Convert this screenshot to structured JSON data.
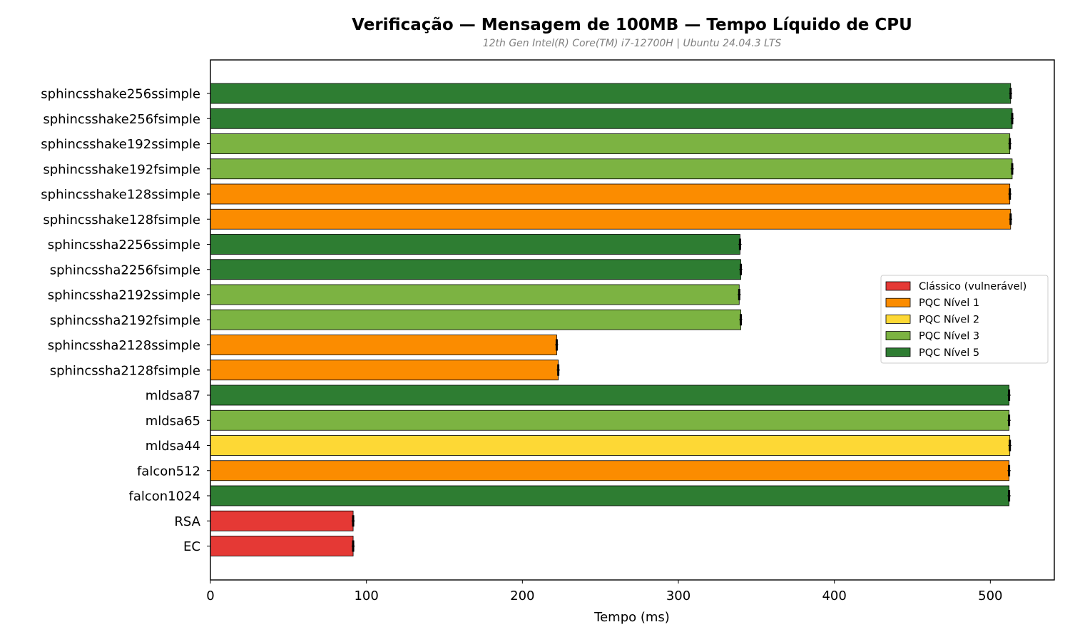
{
  "chart_data": {
    "type": "bar",
    "orientation": "horizontal",
    "title": "Verificação — Mensagem de 100MB — Tempo Líquido de CPU",
    "subtitle": "12th Gen Intel(R) Core(TM) i7-12700H | Ubuntu 24.04.3 LTS",
    "xlabel": "Tempo (ms)",
    "ylabel": "",
    "xlim": [
      0,
      541
    ],
    "xticks": [
      0,
      100,
      200,
      300,
      400,
      500
    ],
    "grid": false,
    "legend_position": "center-right",
    "legend": [
      {
        "key": "classico",
        "label": "Clássico (vulnerável)",
        "color": "#e53935"
      },
      {
        "key": "n1",
        "label": "PQC Nível 1",
        "color": "#fb8c00"
      },
      {
        "key": "n2",
        "label": "PQC Nível 2",
        "color": "#fdd835"
      },
      {
        "key": "n3",
        "label": "PQC Nível 3",
        "color": "#7cb342"
      },
      {
        "key": "n5",
        "label": "PQC Nível 5",
        "color": "#2e7d32"
      }
    ],
    "bars": [
      {
        "label": "sphincsshake256ssimple",
        "value": 513,
        "error": 1,
        "level": "n5"
      },
      {
        "label": "sphincsshake256fsimple",
        "value": 514,
        "error": 1,
        "level": "n5"
      },
      {
        "label": "sphincsshake192ssimple",
        "value": 512.5,
        "error": 1,
        "level": "n3"
      },
      {
        "label": "sphincsshake192fsimple",
        "value": 514,
        "error": 1,
        "level": "n3"
      },
      {
        "label": "sphincsshake128ssimple",
        "value": 512.5,
        "error": 1,
        "level": "n1"
      },
      {
        "label": "sphincsshake128fsimple",
        "value": 513,
        "error": 1,
        "level": "n1"
      },
      {
        "label": "sphincssha2256ssimple",
        "value": 339.5,
        "error": 1,
        "level": "n5"
      },
      {
        "label": "sphincssha2256fsimple",
        "value": 340,
        "error": 1,
        "level": "n5"
      },
      {
        "label": "sphincssha2192ssimple",
        "value": 339,
        "error": 1,
        "level": "n3"
      },
      {
        "label": "sphincssha2192fsimple",
        "value": 340,
        "error": 1,
        "level": "n3"
      },
      {
        "label": "sphincssha2128ssimple",
        "value": 222,
        "error": 1,
        "level": "n1"
      },
      {
        "label": "sphincssha2128fsimple",
        "value": 223,
        "error": 1,
        "level": "n1"
      },
      {
        "label": "mldsa87",
        "value": 512,
        "error": 1,
        "level": "n5"
      },
      {
        "label": "mldsa65",
        "value": 512,
        "error": 1,
        "level": "n3"
      },
      {
        "label": "mldsa44",
        "value": 512.5,
        "error": 1,
        "level": "n2"
      },
      {
        "label": "falcon512",
        "value": 512,
        "error": 1,
        "level": "n1"
      },
      {
        "label": "falcon1024",
        "value": 512,
        "error": 1,
        "level": "n5"
      },
      {
        "label": "RSA",
        "value": 91.5,
        "error": 1,
        "level": "classico"
      },
      {
        "label": "EC",
        "value": 91.5,
        "error": 1,
        "level": "classico"
      }
    ]
  }
}
